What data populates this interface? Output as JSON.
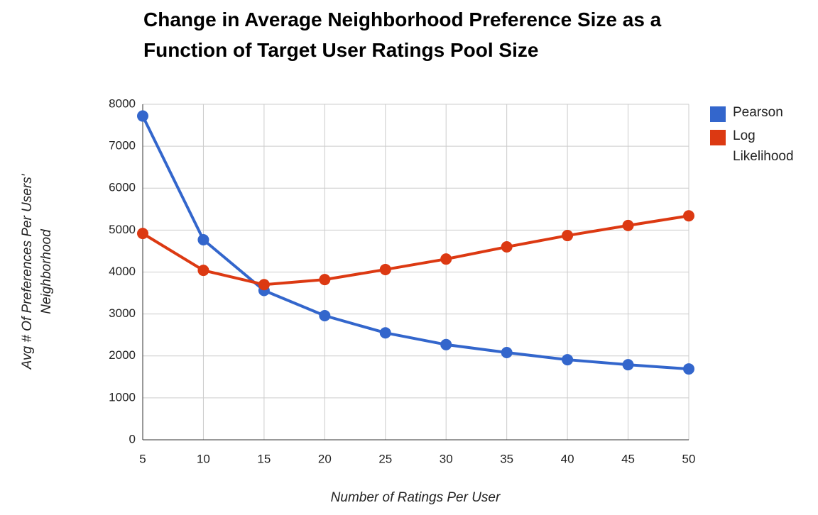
{
  "chart_data": {
    "type": "line",
    "title": "Change in Average Neighborhood Preference Size as a Function of Target User Ratings Pool Size",
    "x_label": "Number of Ratings Per User",
    "y_label": "Avg # Of Preferences Per Users' Neighborhood",
    "x": [
      5,
      10,
      15,
      20,
      25,
      30,
      35,
      40,
      45,
      50
    ],
    "series": [
      {
        "name": "Pearson",
        "color": "#3366cc",
        "values": [
          7720,
          4770,
          3560,
          2960,
          2550,
          2270,
          2080,
          1910,
          1790,
          1690
        ]
      },
      {
        "name": "Log Likelihood",
        "color": "#dc3912",
        "values": [
          4920,
          4040,
          3700,
          3820,
          4060,
          4310,
          4600,
          4870,
          5110,
          5340
        ]
      }
    ],
    "xlim": [
      5,
      50
    ],
    "xticks": [
      5,
      10,
      15,
      20,
      25,
      30,
      35,
      40,
      45,
      50
    ],
    "ylim": [
      0,
      8000
    ],
    "yticks": [
      0,
      1000,
      2000,
      3000,
      4000,
      5000,
      6000,
      7000,
      8000
    ],
    "grid": true,
    "legend": "right"
  }
}
